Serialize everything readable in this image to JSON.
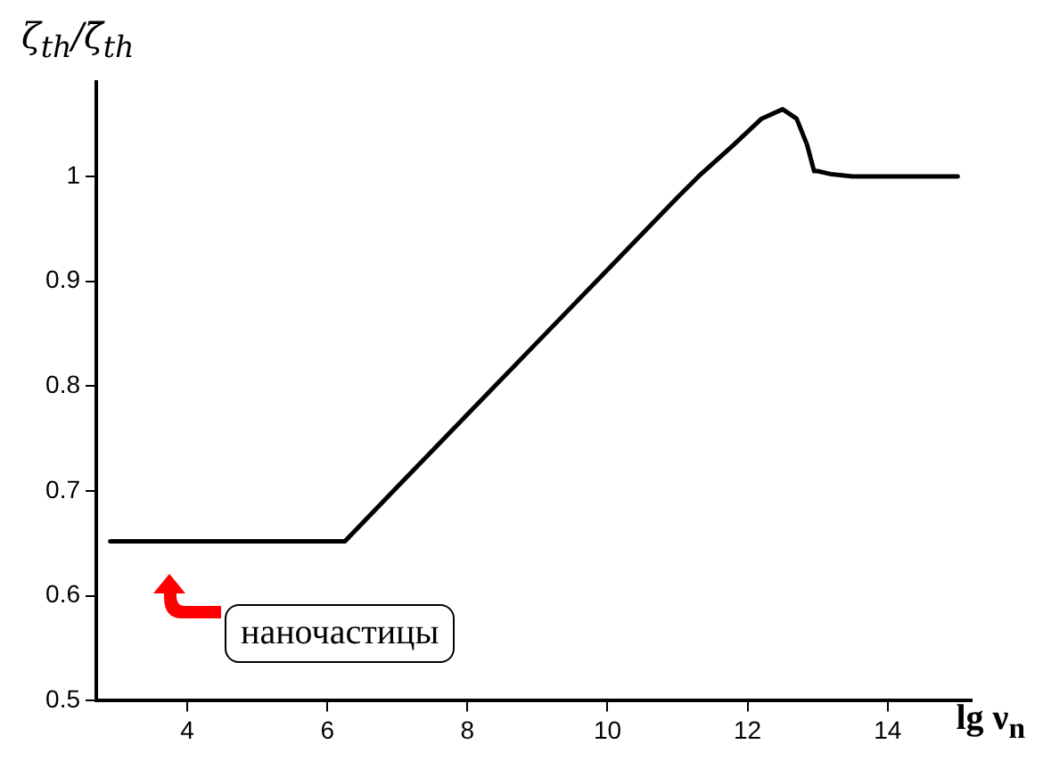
{
  "chart_data": {
    "type": "line",
    "xlabel": "lg ν$_{n}$",
    "ylabel": "ζ$_{th}$/ζ̄$_{th}$",
    "series": [
      {
        "color": "#000000",
        "x": [
          2.9,
          4,
          5,
          6,
          6.25,
          7,
          8,
          9,
          10,
          11,
          11.3,
          11.8,
          12.2,
          12.5,
          12.7,
          12.85,
          12.95,
          13.0,
          13.2,
          13.5,
          14,
          15
        ],
        "values": [
          0.652,
          0.652,
          0.652,
          0.652,
          0.652,
          0.704,
          0.773,
          0.842,
          0.911,
          0.98,
          1.0,
          1.03,
          1.055,
          1.064,
          1.055,
          1.03,
          1.005,
          1.005,
          1.002,
          1.0,
          1.0,
          1.0
        ]
      }
    ],
    "xlim": [
      2.7,
      15.2
    ],
    "ylim": [
      0.5,
      1.09
    ],
    "xticks": [
      4,
      6,
      8,
      10,
      12,
      14
    ],
    "yticks": [
      0.5,
      0.6,
      0.7,
      0.8,
      0.9,
      1
    ],
    "grid": false,
    "legend": false,
    "marker": "none",
    "line_style": "solid",
    "annotations": [
      "наночастицы"
    ]
  }
}
